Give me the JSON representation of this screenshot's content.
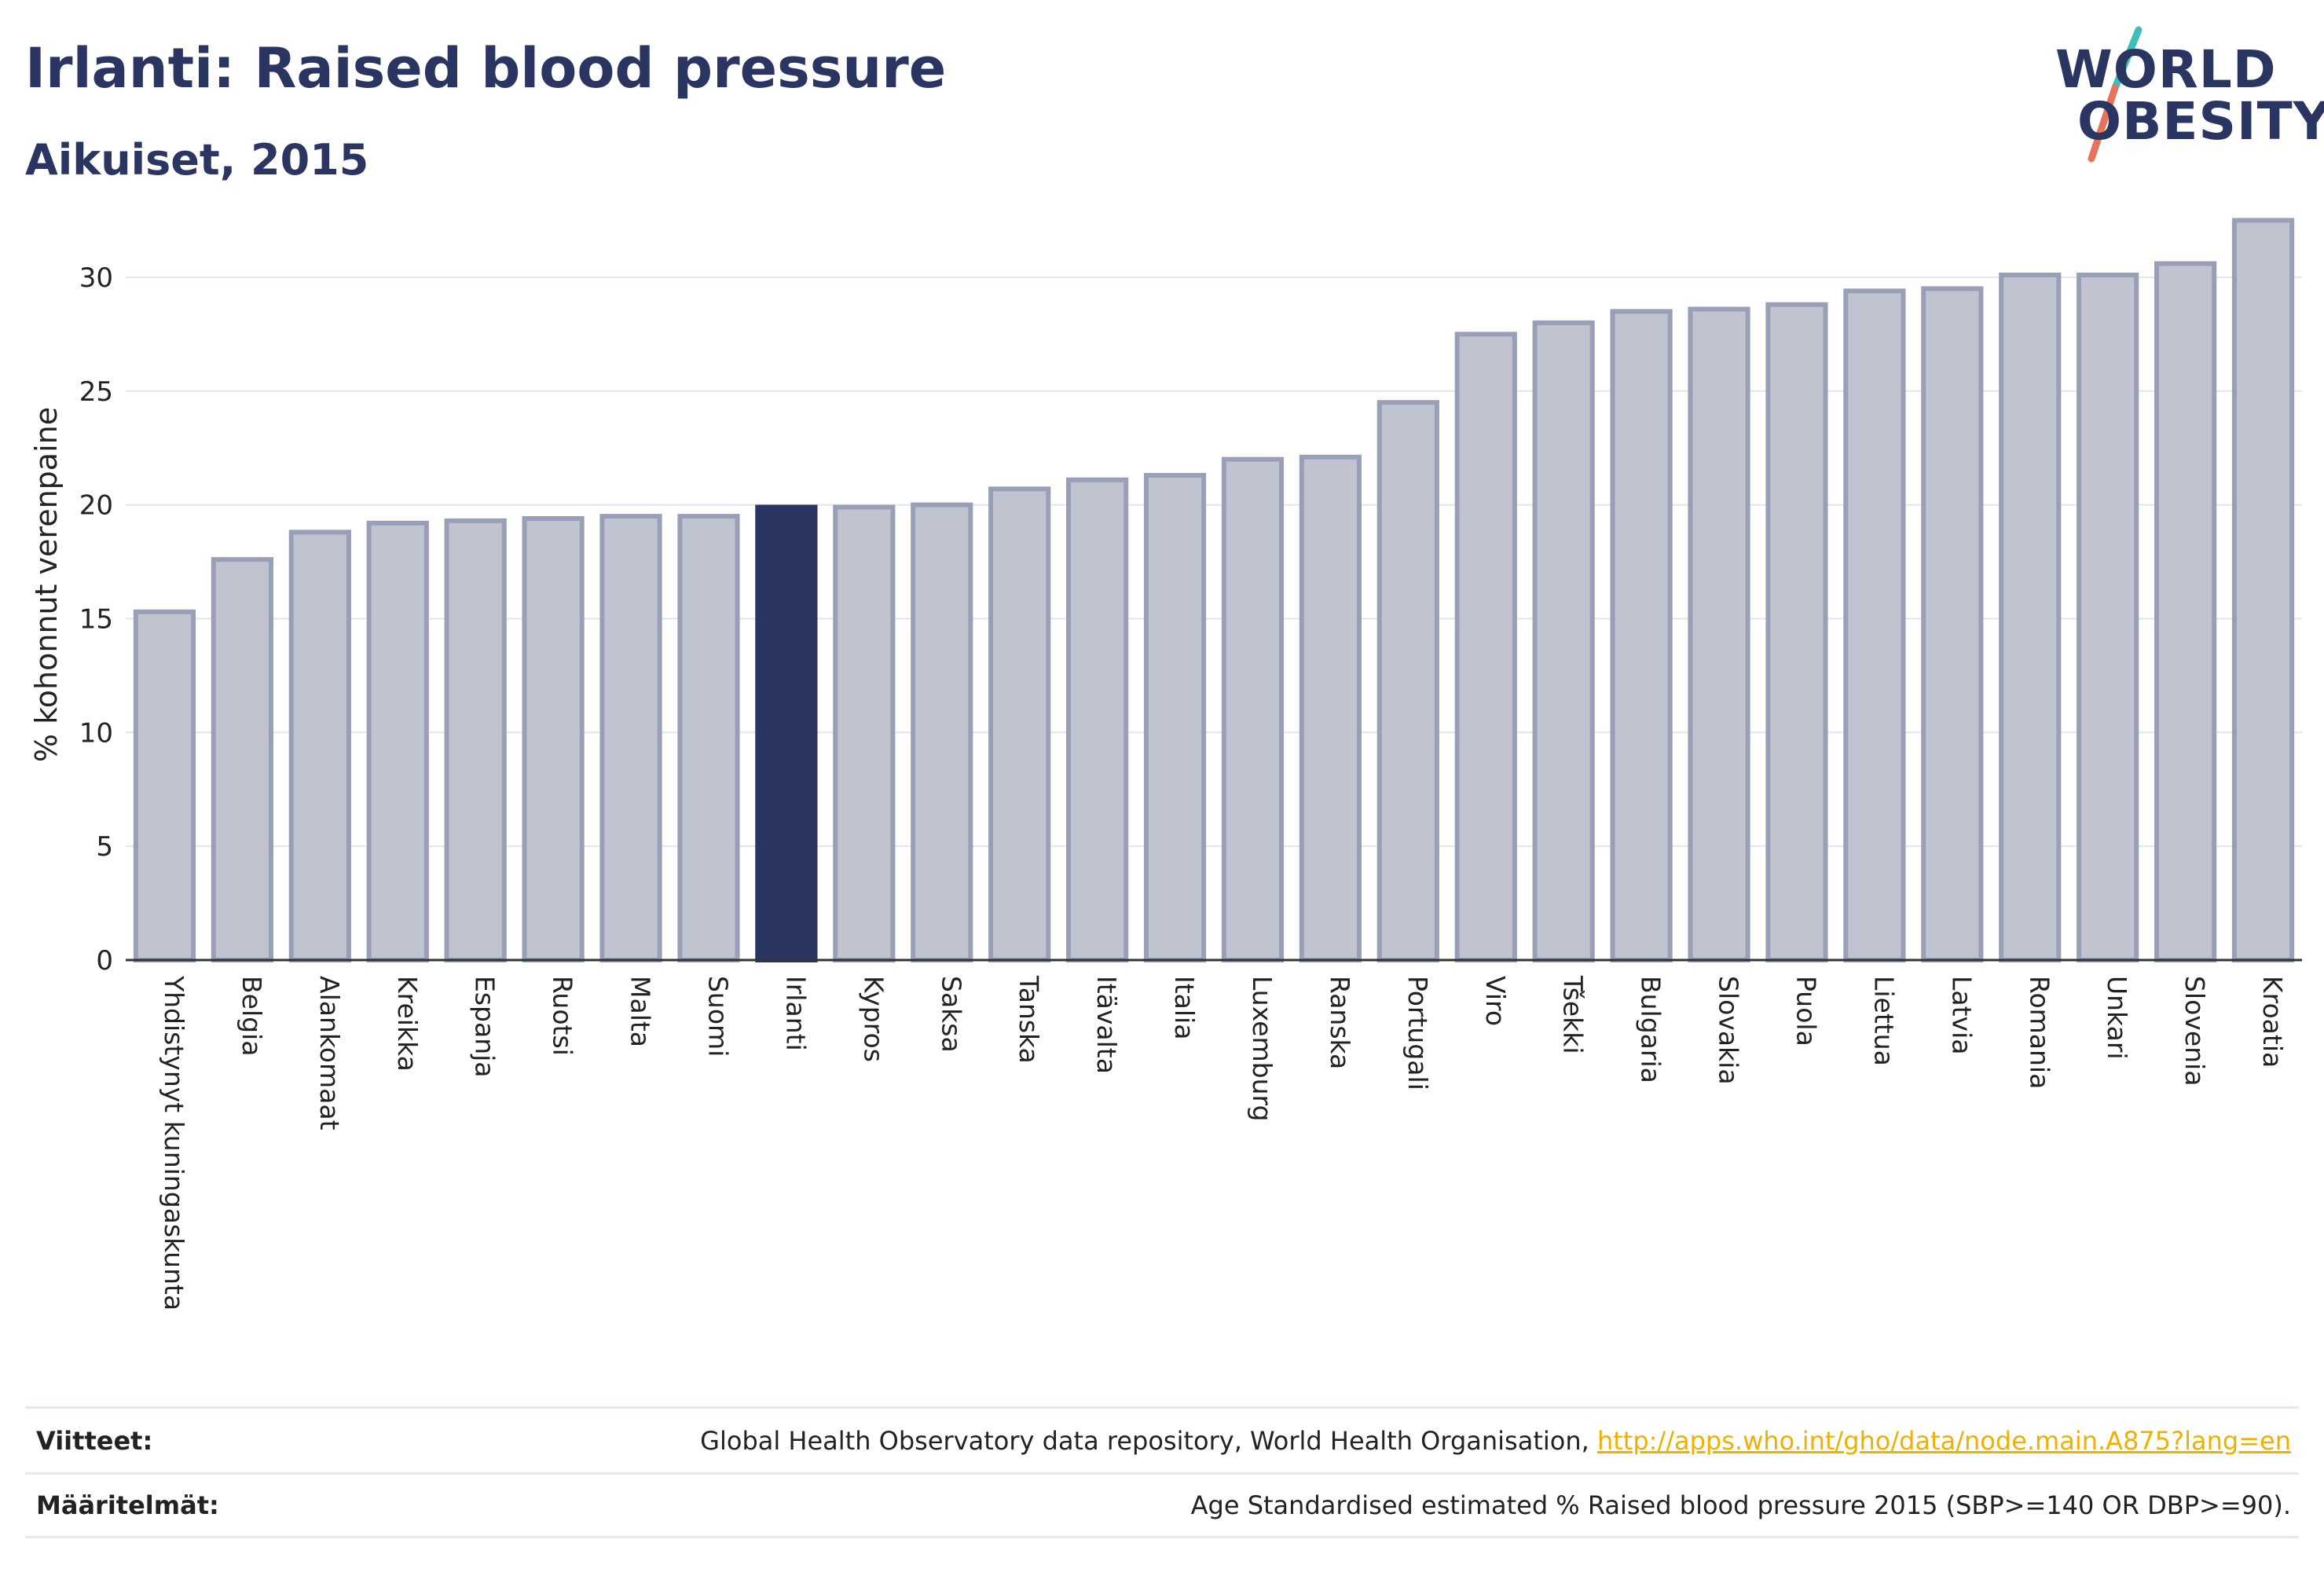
{
  "header": {
    "title": "Irlanti: Raised blood pressure",
    "subtitle": "Aikuiset, 2015"
  },
  "logo": {
    "line1": "WORLD",
    "line2": "OBESITY",
    "colors": {
      "text": "#2a3561",
      "slash_top": "#3dbfb8",
      "slash_bottom": "#e8735a"
    }
  },
  "chart_data": {
    "type": "bar",
    "ylabel": "% kohonnut verenpaine",
    "xlabel": "",
    "ylim": [
      0,
      33
    ],
    "yticks": [
      0,
      5,
      10,
      15,
      20,
      25,
      30
    ],
    "grid": true,
    "highlight": "Irlanti",
    "colors": {
      "bar": "#c0c3d0",
      "bar_edge": "#9a9fb8",
      "highlight": "#2a3561",
      "grid": "#e3e5ec"
    },
    "categories": [
      "Yhdistynyt kuningaskunta",
      "Belgia",
      "Alankomaat",
      "Kreikka",
      "Espanja",
      "Ruotsi",
      "Malta",
      "Suomi",
      "Irlanti",
      "Kypros",
      "Saksa",
      "Tanska",
      "Itävalta",
      "Italia",
      "Luxemburg",
      "Ranska",
      "Portugali",
      "Viro",
      "Tšekki",
      "Bulgaria",
      "Slovakia",
      "Puola",
      "Liettua",
      "Latvia",
      "Romania",
      "Unkari",
      "Slovenia",
      "Kroatia"
    ],
    "values": [
      15.3,
      17.6,
      18.8,
      19.2,
      19.3,
      19.4,
      19.5,
      19.5,
      19.9,
      19.9,
      20.0,
      20.7,
      21.1,
      21.3,
      22.0,
      22.1,
      24.5,
      27.5,
      28.0,
      28.5,
      28.6,
      28.8,
      29.4,
      29.5,
      30.1,
      30.1,
      30.6,
      32.5
    ]
  },
  "footer": {
    "sources_label": "Viitteet:",
    "sources_text": "Global Health Observatory data repository, World Health Organisation, ",
    "sources_link": "http://apps.who.int/gho/data/node.main.A875?lang=en",
    "definitions_label": "Määritelmät:",
    "definitions_text": "Age Standardised estimated % Raised blood pressure 2015 (SBP>=140 OR DBP>=90)."
  }
}
